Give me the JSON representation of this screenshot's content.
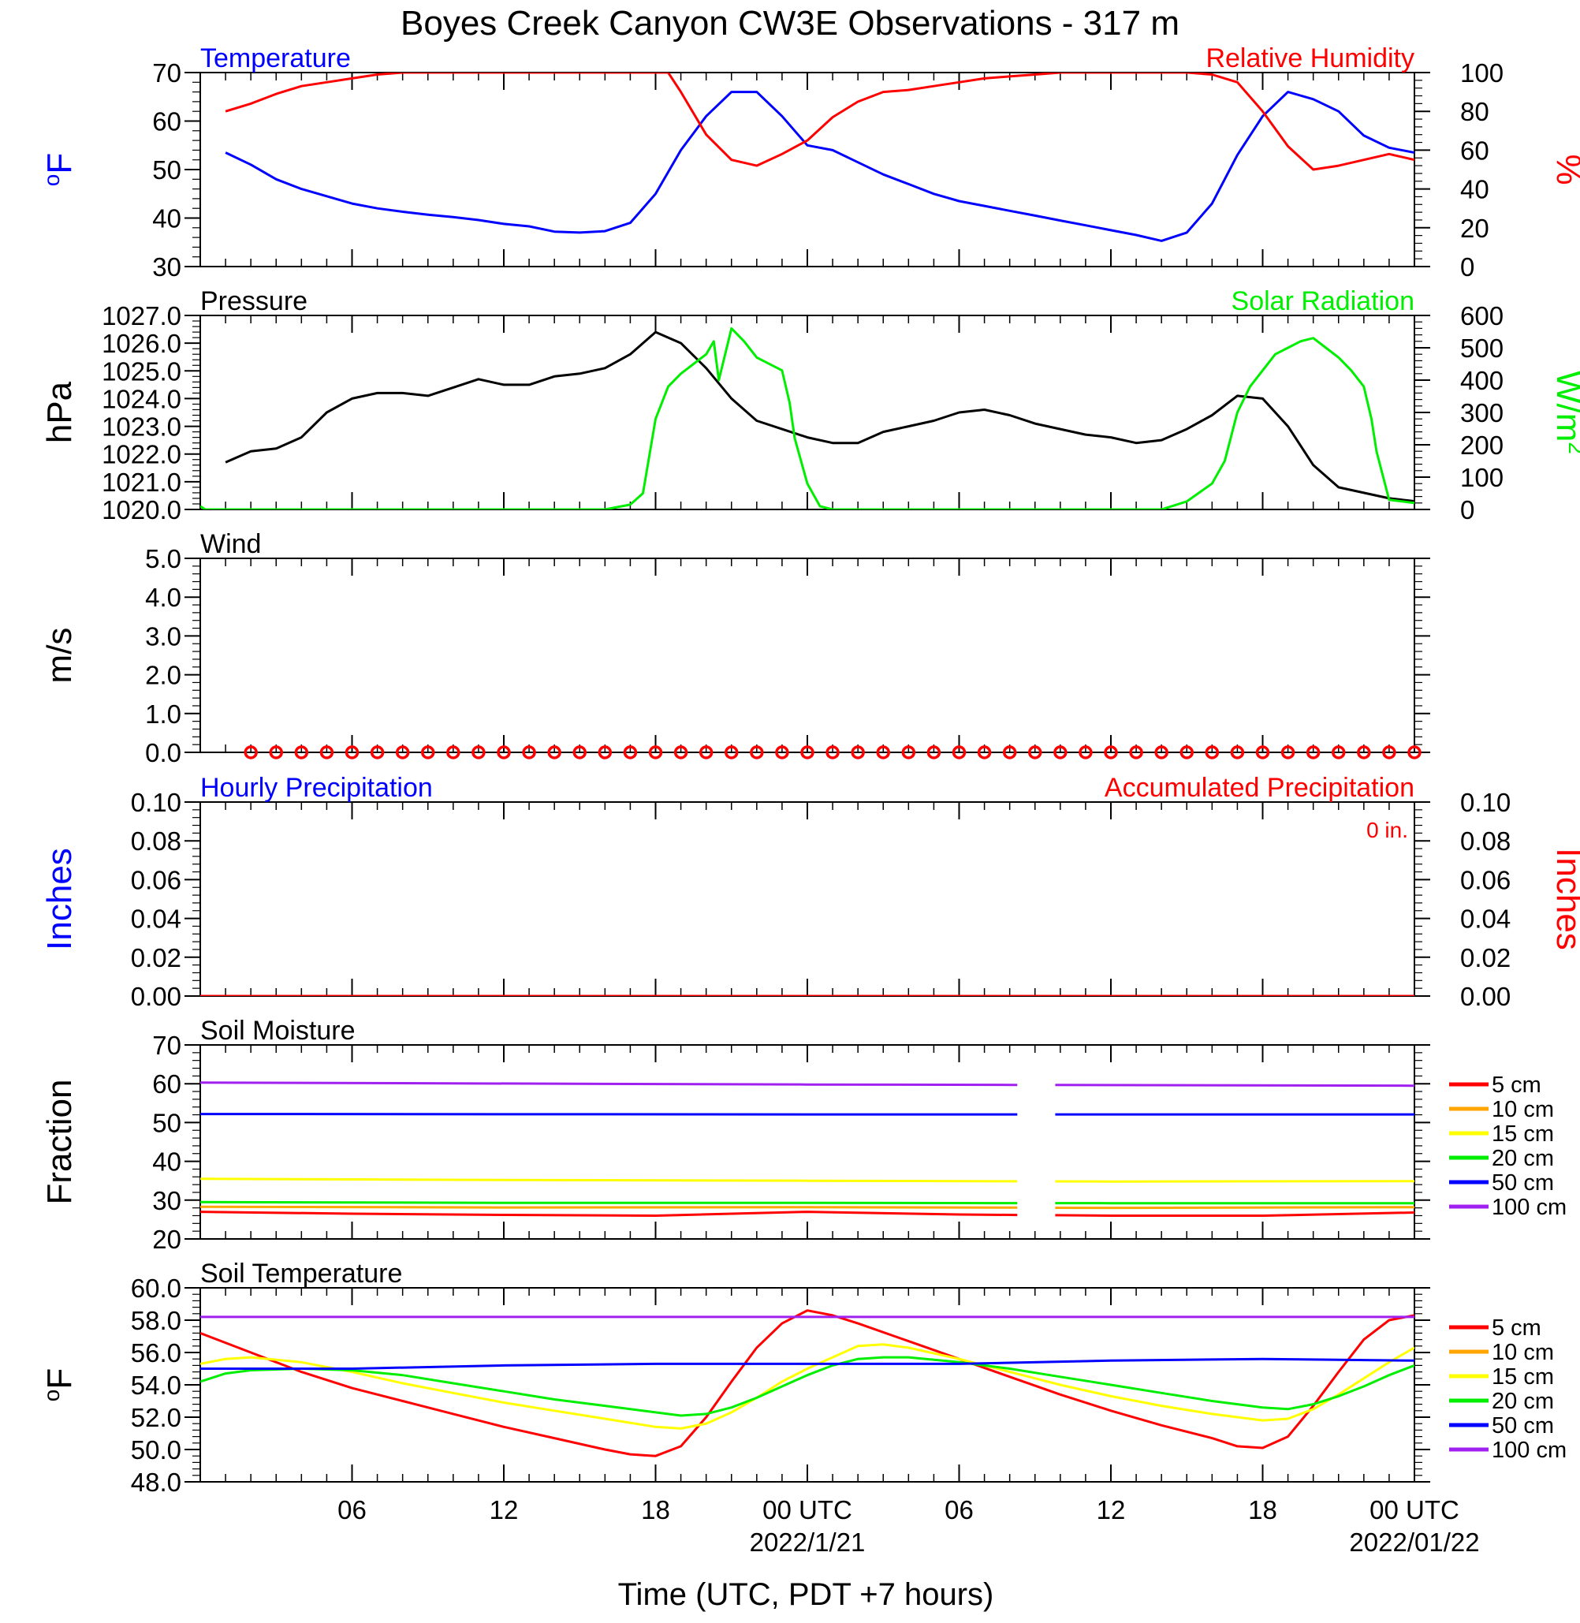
{
  "title": "Boyes Creek Canyon CW3E Observations - 317 m",
  "colors": {
    "blue": "#0000ff",
    "red": "#ff0000",
    "green": "#00ee00",
    "black": "#000000",
    "orange": "#ffa500",
    "yellow": "#ffff00",
    "purple": "#a020f0"
  },
  "x_axis": {
    "label": "Time (UTC, PDT +7 hours)",
    "range_hours": [
      -1,
      47
    ],
    "ticks": [
      {
        "hour": 5,
        "label": "06",
        "date": ""
      },
      {
        "hour": 11,
        "label": "12",
        "date": ""
      },
      {
        "hour": 17,
        "label": "18",
        "date": ""
      },
      {
        "hour": 23,
        "label": "00 UTC",
        "date": "2022/1/21"
      },
      {
        "hour": 29,
        "label": "06",
        "date": ""
      },
      {
        "hour": 35,
        "label": "12",
        "date": ""
      },
      {
        "hour": 41,
        "label": "18",
        "date": ""
      },
      {
        "hour": 47,
        "label": "00 UTC",
        "date": "2022/01/22"
      }
    ]
  },
  "chart_data": [
    {
      "type": "line",
      "id": "temp_rh",
      "left_title": "Temperature",
      "right_title": "Relative Humidity",
      "left_ylabel": "oF",
      "right_ylabel": "%",
      "left_ylim": [
        30,
        70
      ],
      "right_ylim": [
        0,
        100
      ],
      "left_ticks": [
        "30",
        "40",
        "50",
        "60",
        "70"
      ],
      "right_ticks": [
        "0",
        "20",
        "40",
        "60",
        "80",
        "100"
      ],
      "series": [
        {
          "axis": "left",
          "color": "#0000ff",
          "x": [
            0,
            1,
            2,
            3,
            4,
            5,
            6,
            7,
            8,
            9,
            10,
            11,
            12,
            13,
            14,
            15,
            16,
            17,
            18,
            19,
            20,
            21,
            22,
            23,
            24,
            25,
            26,
            27,
            28,
            29,
            30,
            31,
            32,
            33,
            34,
            35,
            36,
            37,
            38,
            39,
            40,
            41,
            42,
            43,
            44,
            45,
            46,
            47
          ],
          "y": [
            53.5,
            51,
            48,
            46,
            44.5,
            43,
            42,
            41.3,
            40.7,
            40.2,
            39.6,
            38.8,
            38.3,
            37.2,
            37,
            37.3,
            39,
            45,
            54,
            61,
            66,
            66,
            61,
            55,
            54,
            51.5,
            49,
            47,
            45,
            43.5,
            42.5,
            41.5,
            40.5,
            39.5,
            38.5,
            37.5,
            36.5,
            35.3,
            37,
            43,
            53,
            61,
            66,
            64.5,
            62,
            57,
            54.5,
            53.5
          ]
        },
        {
          "axis": "right",
          "color": "#ff0000",
          "x": [
            0,
            1,
            2,
            3,
            4,
            5,
            6,
            7,
            8,
            9,
            10,
            11,
            12,
            13,
            14,
            15,
            16,
            17,
            17.5,
            18,
            19,
            20,
            21,
            22,
            23,
            24,
            25,
            26,
            27,
            28,
            29,
            30,
            31,
            32,
            33,
            34,
            35,
            36,
            37,
            38,
            39,
            40,
            41,
            42,
            43,
            44,
            45,
            46,
            47
          ],
          "y": [
            80,
            84,
            89,
            93,
            95,
            97,
            99,
            100,
            100,
            100,
            100,
            100,
            100,
            100,
            100,
            100,
            100,
            100,
            100,
            90,
            68,
            55,
            52,
            58,
            65,
            77,
            85,
            90,
            91,
            93,
            95,
            97,
            98,
            99,
            100,
            100,
            100,
            100,
            100,
            100,
            99,
            95,
            80,
            62,
            50,
            52,
            55,
            58,
            55
          ]
        }
      ]
    },
    {
      "type": "line",
      "id": "pressure_solar",
      "left_title": "Pressure",
      "right_title": "Solar Radiation",
      "left_ylabel": "hPa",
      "right_ylabel": "W/m2",
      "left_ylim": [
        1020,
        1027
      ],
      "right_ylim": [
        0,
        600
      ],
      "left_ticks": [
        "1020.0",
        "1021.0",
        "1022.0",
        "1023.0",
        "1024.0",
        "1025.0",
        "1026.0",
        "1027.0"
      ],
      "right_ticks": [
        "0",
        "100",
        "200",
        "300",
        "400",
        "500",
        "600"
      ],
      "series": [
        {
          "axis": "left",
          "color": "#000000",
          "x": [
            0,
            1,
            2,
            3,
            4,
            5,
            6,
            7,
            8,
            9,
            10,
            11,
            12,
            13,
            14,
            15,
            16,
            17,
            18,
            19,
            20,
            21,
            22,
            23,
            24,
            25,
            26,
            27,
            28,
            29,
            30,
            31,
            32,
            33,
            34,
            35,
            36,
            37,
            38,
            39,
            40,
            41,
            42,
            43,
            44,
            45,
            46,
            47
          ],
          "y": [
            1021.7,
            1022.1,
            1022.2,
            1022.6,
            1023.5,
            1024.0,
            1024.2,
            1024.2,
            1024.1,
            1024.4,
            1024.7,
            1024.5,
            1024.5,
            1024.8,
            1024.9,
            1025.1,
            1025.6,
            1026.4,
            1026.0,
            1025.1,
            1024.0,
            1023.2,
            1022.9,
            1022.6,
            1022.4,
            1022.4,
            1022.8,
            1023.0,
            1023.2,
            1023.5,
            1023.6,
            1023.4,
            1023.1,
            1022.9,
            1022.7,
            1022.6,
            1022.4,
            1022.5,
            1022.9,
            1023.4,
            1024.1,
            1024.0,
            1023.0,
            1021.6,
            1020.8,
            1020.6,
            1020.4,
            1020.3
          ]
        },
        {
          "axis": "right",
          "color": "#00ee00",
          "x": [
            -1,
            -0.8,
            13,
            14,
            15,
            16,
            16.5,
            17,
            17.5,
            18,
            19,
            19.3,
            19.5,
            20,
            20.5,
            21,
            22,
            22.3,
            22.5,
            23,
            23.5,
            24,
            37,
            38,
            39,
            39.5,
            40,
            40.5,
            41,
            41.5,
            42,
            42.5,
            43,
            43.5,
            44,
            44.5,
            45,
            45.3,
            45.5,
            46,
            47
          ],
          "y": [
            10,
            0,
            0,
            0,
            0,
            15,
            50,
            280,
            380,
            420,
            480,
            520,
            400,
            560,
            520,
            470,
            430,
            330,
            220,
            80,
            10,
            0,
            0,
            25,
            80,
            150,
            300,
            380,
            430,
            480,
            500,
            520,
            530,
            500,
            470,
            430,
            380,
            280,
            180,
            30,
            20
          ]
        }
      ]
    },
    {
      "type": "scatter",
      "id": "wind",
      "left_title": "Wind",
      "left_ylabel": "m/s",
      "left_ylim": [
        0,
        5
      ],
      "left_ticks": [
        "0.0",
        "1.0",
        "2.0",
        "3.0",
        "4.0",
        "5.0"
      ],
      "series": [
        {
          "color": "#ff0000",
          "marker": "circle",
          "x": [
            1,
            2,
            3,
            4,
            5,
            6,
            7,
            8,
            9,
            10,
            11,
            12,
            13,
            14,
            15,
            16,
            17,
            18,
            19,
            20,
            21,
            22,
            23,
            24,
            25,
            26,
            27,
            28,
            29,
            30,
            31,
            32,
            33,
            34,
            35,
            36,
            37,
            38,
            39,
            40,
            41,
            42,
            43,
            44,
            45,
            46,
            47
          ],
          "y": [
            0,
            0,
            0,
            0,
            0,
            0,
            0,
            0,
            0,
            0,
            0,
            0,
            0,
            0,
            0,
            0,
            0,
            0,
            0,
            0,
            0,
            0,
            0,
            0,
            0,
            0,
            0,
            0,
            0,
            0,
            0,
            0,
            0,
            0,
            0,
            0,
            0,
            0,
            0,
            0,
            0,
            0,
            0,
            0,
            0,
            0,
            0
          ]
        }
      ]
    },
    {
      "type": "line",
      "id": "precip",
      "left_title": "Hourly Precipitation",
      "right_title": "Accumulated Precipitation",
      "annotation": "0 in.",
      "left_ylabel": "Inches",
      "right_ylabel": "Inches",
      "left_ylim": [
        0,
        0.1
      ],
      "right_ylim": [
        0,
        0.1
      ],
      "left_ticks": [
        "0.00",
        "0.02",
        "0.04",
        "0.06",
        "0.08",
        "0.10"
      ],
      "right_ticks": [
        "0.00",
        "0.02",
        "0.04",
        "0.06",
        "0.08",
        "0.10"
      ],
      "series": [
        {
          "axis": "right",
          "color": "#ff0000",
          "x": [
            -1,
            47
          ],
          "y": [
            0,
            0
          ]
        }
      ]
    },
    {
      "type": "line",
      "id": "soil_moisture",
      "left_title": "Soil Moisture",
      "left_ylabel": "Fraction",
      "left_ylim": [
        20,
        70
      ],
      "left_ticks": [
        "20",
        "30",
        "40",
        "50",
        "60",
        "70"
      ],
      "legend": [
        "5 cm",
        "10 cm",
        "15 cm",
        "20 cm",
        "50 cm",
        "100 cm"
      ],
      "gap_hours": [
        31.3,
        32.8
      ],
      "series": [
        {
          "name": "5 cm",
          "color": "#ff0000",
          "x": [
            -1,
            5,
            11,
            17,
            23,
            29,
            35,
            41,
            47
          ],
          "y": [
            27,
            26.5,
            26.2,
            26,
            27,
            26.3,
            26,
            26,
            26.8
          ]
        },
        {
          "name": "10 cm",
          "color": "#ffa500",
          "x": [
            -1,
            11,
            23,
            35,
            47
          ],
          "y": [
            28.3,
            28.1,
            28.2,
            28,
            28.2
          ]
        },
        {
          "name": "15 cm",
          "color": "#ffff00",
          "x": [
            -1,
            11,
            23,
            35,
            47
          ],
          "y": [
            35.5,
            35.2,
            35,
            34.8,
            34.9
          ]
        },
        {
          "name": "20 cm",
          "color": "#00ee00",
          "x": [
            -1,
            11,
            23,
            35,
            47
          ],
          "y": [
            29.5,
            29.3,
            29.3,
            29.2,
            29.2
          ]
        },
        {
          "name": "50 cm",
          "color": "#0000ff",
          "x": [
            -1,
            23,
            47
          ],
          "y": [
            52.2,
            52.1,
            52.1
          ]
        },
        {
          "name": "100 cm",
          "color": "#a020f0",
          "x": [
            -1,
            23,
            47
          ],
          "y": [
            60.3,
            59.8,
            59.5
          ]
        }
      ]
    },
    {
      "type": "line",
      "id": "soil_temp",
      "left_title": "Soil Temperature",
      "left_ylabel": "oF",
      "left_ylim": [
        48,
        60
      ],
      "left_ticks": [
        "48.0",
        "50.0",
        "52.0",
        "54.0",
        "56.0",
        "58.0",
        "60.0"
      ],
      "legend": [
        "5 cm",
        "10 cm",
        "15 cm",
        "20 cm",
        "50 cm",
        "100 cm"
      ],
      "series": [
        {
          "name": "5 cm",
          "color": "#ff0000",
          "x": [
            -1,
            1,
            3,
            5,
            7,
            9,
            11,
            13,
            15,
            16,
            17,
            18,
            19,
            20,
            21,
            22,
            23,
            24,
            25,
            27,
            29,
            31,
            33,
            35,
            37,
            39,
            40,
            41,
            42,
            43,
            44,
            45,
            46,
            47
          ],
          "y": [
            57.2,
            56.0,
            54.8,
            53.8,
            53.0,
            52.2,
            51.4,
            50.7,
            50.0,
            49.7,
            49.6,
            50.2,
            52.0,
            54.2,
            56.3,
            57.8,
            58.6,
            58.3,
            57.8,
            56.7,
            55.6,
            54.5,
            53.4,
            52.4,
            51.5,
            50.7,
            50.2,
            50.1,
            50.8,
            52.7,
            54.8,
            56.8,
            58.0,
            58.3
          ]
        },
        {
          "name": "15 cm",
          "color": "#ffff00",
          "x": [
            -1,
            0,
            1,
            3,
            5,
            7,
            9,
            11,
            13,
            15,
            17,
            18,
            19,
            20,
            21,
            22,
            23,
            24,
            25,
            26,
            27,
            29,
            31,
            33,
            35,
            37,
            39,
            41,
            42,
            43,
            44,
            45,
            46,
            47
          ],
          "y": [
            55.3,
            55.6,
            55.7,
            55.4,
            54.8,
            54.1,
            53.5,
            52.9,
            52.4,
            51.9,
            51.4,
            51.3,
            51.6,
            52.3,
            53.2,
            54.2,
            55.0,
            55.7,
            56.4,
            56.5,
            56.3,
            55.6,
            54.8,
            54.0,
            53.3,
            52.7,
            52.2,
            51.8,
            51.9,
            52.5,
            53.4,
            54.4,
            55.4,
            56.3
          ]
        },
        {
          "name": "20 cm",
          "color": "#00ee00",
          "x": [
            -1,
            0,
            1,
            3,
            5,
            7,
            9,
            11,
            13,
            15,
            17,
            18,
            19,
            20,
            21,
            22,
            23,
            24,
            25,
            26,
            27,
            29,
            31,
            33,
            35,
            37,
            39,
            41,
            42,
            43,
            44,
            45,
            46,
            47
          ],
          "y": [
            54.2,
            54.7,
            54.9,
            55.0,
            54.9,
            54.6,
            54.1,
            53.6,
            53.1,
            52.7,
            52.3,
            52.1,
            52.2,
            52.6,
            53.2,
            53.9,
            54.6,
            55.2,
            55.6,
            55.7,
            55.7,
            55.4,
            55.0,
            54.5,
            54.0,
            53.5,
            53.0,
            52.6,
            52.5,
            52.8,
            53.3,
            53.9,
            54.6,
            55.2
          ]
        },
        {
          "name": "50 cm",
          "color": "#0000ff",
          "x": [
            -1,
            5,
            11,
            17,
            23,
            29,
            35,
            41,
            47
          ],
          "y": [
            55.0,
            55.0,
            55.2,
            55.3,
            55.3,
            55.3,
            55.5,
            55.6,
            55.5
          ]
        },
        {
          "name": "100 cm",
          "color": "#a020f0",
          "x": [
            -1,
            11,
            23,
            35,
            47
          ],
          "y": [
            58.2,
            58.2,
            58.2,
            58.2,
            58.2
          ]
        }
      ]
    }
  ]
}
